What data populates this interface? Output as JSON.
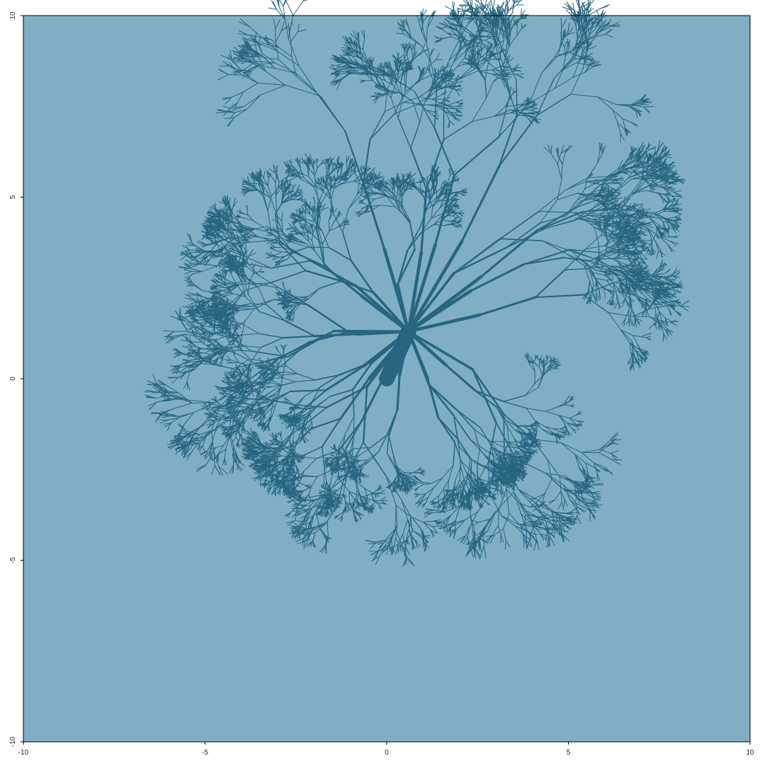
{
  "chart_data": {
    "type": "scatter",
    "title": "",
    "xlabel": "",
    "ylabel": "",
    "xlim": [
      -10,
      10
    ],
    "ylim": [
      -10,
      10
    ],
    "grid": false,
    "legend": "none",
    "x_ticks": [
      -10,
      -5,
      0,
      5,
      10
    ],
    "y_ticks": [
      -10,
      -5,
      0,
      5,
      10
    ],
    "x_tick_labels": [
      "-10",
      "-5",
      "0",
      "5",
      "10"
    ],
    "y_tick_labels": [
      "-10",
      "-5",
      "0",
      "5",
      "10"
    ],
    "colors": {
      "background": "#80AFC5",
      "tree": "#276580"
    },
    "series": [
      {
        "kind": "fractal-tree",
        "trunk_base": [
          0.0,
          0.0
        ],
        "trunk_top": [
          0.6,
          1.3
        ],
        "extent": {
          "x": [
            -3.5,
            6.3
          ],
          "y": [
            -2.6,
            8.4
          ]
        },
        "branch_tips": [
          [
            -1.3,
            7.8
          ],
          [
            2.7,
            8.1
          ],
          [
            4.8,
            8.4
          ],
          [
            6.3,
            5.6
          ],
          [
            6.2,
            2.6
          ],
          [
            -3.5,
            1.1
          ],
          [
            -3.1,
            4.1
          ],
          [
            -2.5,
            -2.4
          ],
          [
            -1.5,
            -2.6
          ],
          [
            2.1,
            -2.4
          ],
          [
            3.5,
            -1.3
          ],
          [
            -0.1,
            -2.1
          ],
          [
            -2.9,
            -1.4
          ],
          [
            5.5,
            4.5
          ],
          [
            1.6,
            7.5
          ]
        ]
      }
    ]
  }
}
